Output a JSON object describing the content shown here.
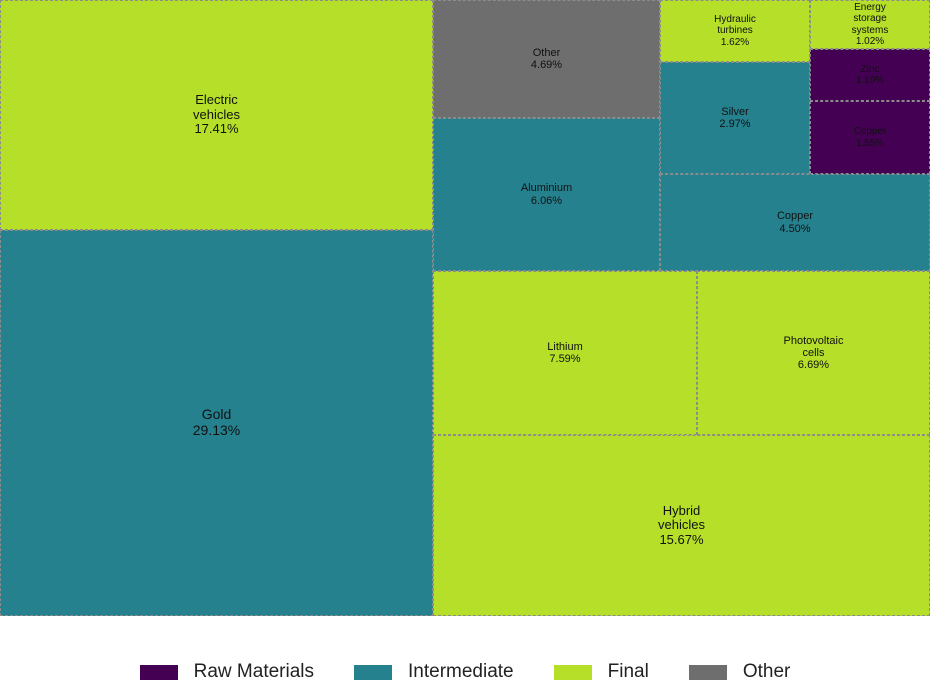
{
  "colors": {
    "Raw Materials": "#440154",
    "Intermediate": "#26818e",
    "Final": "#b5df28",
    "Other": "#6e6e6e"
  },
  "legend": [
    {
      "label": "Raw Materials",
      "color": "#440154"
    },
    {
      "label": "Intermediate",
      "color": "#26818e"
    },
    {
      "label": "Final",
      "color": "#b5df28"
    },
    {
      "label": "Other",
      "color": "#6e6e6e"
    }
  ],
  "chart_data": {
    "type": "treemap",
    "unit": "%",
    "items": [
      {
        "label": "Gold",
        "value": 29.13,
        "display": "29.13%",
        "group": "Intermediate"
      },
      {
        "label": "Electric vehicles",
        "value": 17.41,
        "display": "17.41%",
        "group": "Final"
      },
      {
        "label": "Hybrid vehicles",
        "value": 15.67,
        "display": "15.67%",
        "group": "Final"
      },
      {
        "label": "Lithium",
        "value": 7.59,
        "display": "7.59%",
        "group": "Final"
      },
      {
        "label": "Photovoltaic cells",
        "value": 6.69,
        "display": "6.69%",
        "group": "Final"
      },
      {
        "label": "Aluminium",
        "value": 6.06,
        "display": "6.06%",
        "group": "Intermediate"
      },
      {
        "label": "Other",
        "value": 4.69,
        "display": "4.69%",
        "group": "Other"
      },
      {
        "label": "Copper",
        "value": 4.5,
        "display": "4.50%",
        "group": "Intermediate"
      },
      {
        "label": "Silver",
        "value": 2.97,
        "display": "2.97%",
        "group": "Intermediate"
      },
      {
        "label": "Hydraulic turbines",
        "value": 1.62,
        "display": "1.62%",
        "group": "Final"
      },
      {
        "label": "Copper",
        "value": 1.55,
        "display": "1.55%",
        "group": "Raw Materials"
      },
      {
        "label": "Zinc",
        "value": 1.1,
        "display": "1.10%",
        "group": "Raw Materials"
      },
      {
        "label": "Energy storage systems",
        "value": 1.02,
        "display": "1.02%",
        "group": "Final"
      }
    ]
  }
}
